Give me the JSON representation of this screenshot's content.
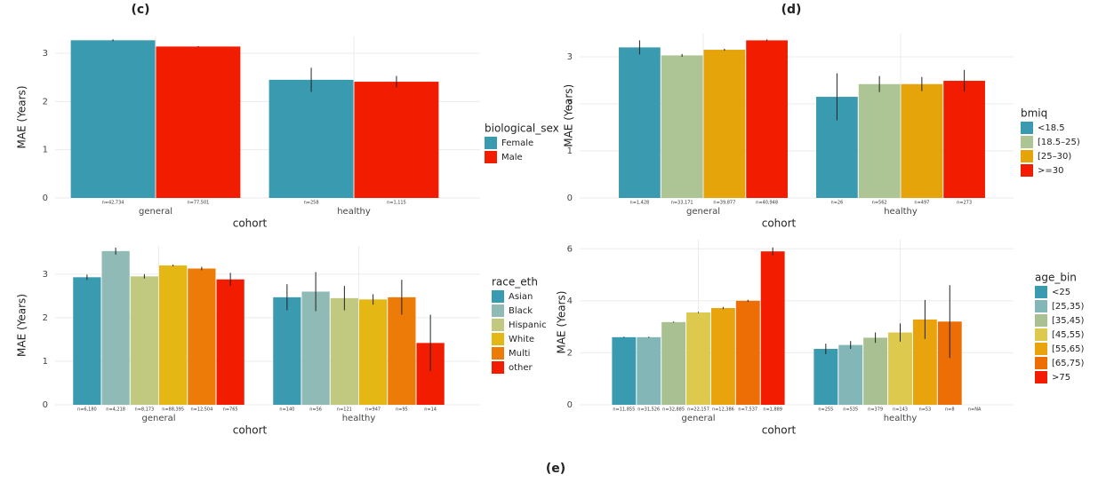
{
  "panel_labels": [
    "(c)",
    "(d)",
    "(e)"
  ],
  "chart_data": [
    {
      "type": "bar",
      "categories": [
        "general",
        "healthy"
      ],
      "xlabel": "cohort",
      "ylabel": "MAE (Years)",
      "legend_title": "biological_sex",
      "ylim": [
        0,
        3.35
      ],
      "yticks": [
        0,
        1,
        2,
        3
      ],
      "grid": true,
      "series": [
        {
          "name": "Female",
          "color": "#3a9ab0",
          "values": [
            3.27,
            2.45
          ],
          "errors": [
            0.02,
            0.25
          ],
          "n_labels": [
            "n=42,734",
            "n=258"
          ]
        },
        {
          "name": "Male",
          "color": "#f21d00",
          "values": [
            3.14,
            2.41
          ],
          "errors": [
            0.01,
            0.12
          ],
          "n_labels": [
            "n=77,501",
            "n=1,115"
          ]
        }
      ]
    },
    {
      "type": "bar",
      "categories": [
        "general",
        "healthy"
      ],
      "xlabel": "cohort",
      "ylabel": "MAE (Years)",
      "legend_title": "bmiq",
      "ylim": [
        0,
        3.5
      ],
      "yticks": [
        0,
        1,
        2,
        3
      ],
      "grid": true,
      "series": [
        {
          "name": "<18.5",
          "color": "#3a9ab0",
          "values": [
            3.2,
            2.15
          ],
          "errors": [
            0.15,
            0.5
          ],
          "n_labels": [
            "n=1,428",
            "n=26"
          ]
        },
        {
          "name": "[18.5–25)",
          "color": "#adc495",
          "values": [
            3.03,
            2.42
          ],
          "errors": [
            0.03,
            0.17
          ],
          "n_labels": [
            "n=33,171",
            "n=562"
          ]
        },
        {
          "name": "[25–30)",
          "color": "#e5a50a",
          "values": [
            3.15,
            2.42
          ],
          "errors": [
            0.02,
            0.15
          ],
          "n_labels": [
            "n=39,877",
            "n=497"
          ]
        },
        {
          "name": ">=30",
          "color": "#f21d00",
          "values": [
            3.35,
            2.49
          ],
          "errors": [
            0.02,
            0.23
          ],
          "n_labels": [
            "n=40,948",
            "n=273"
          ]
        }
      ]
    },
    {
      "type": "bar",
      "categories": [
        "general",
        "healthy"
      ],
      "xlabel": "cohort",
      "ylabel": "MAE (Years)",
      "legend_title": "race_eth",
      "ylim": [
        0,
        3.65
      ],
      "yticks": [
        0,
        1,
        2,
        3
      ],
      "grid": true,
      "series": [
        {
          "name": "Asian",
          "color": "#3a9ab0",
          "values": [
            2.93,
            2.47
          ],
          "errors": [
            0.06,
            0.3
          ],
          "n_labels": [
            "n=6,180",
            "n=140"
          ]
        },
        {
          "name": "Black",
          "color": "#8fbab6",
          "values": [
            3.53,
            2.6
          ],
          "errors": [
            0.08,
            0.45
          ],
          "n_labels": [
            "n=4,218",
            "n=56"
          ]
        },
        {
          "name": "Hispanic",
          "color": "#c0c97f",
          "values": [
            2.95,
            2.45
          ],
          "errors": [
            0.05,
            0.28
          ],
          "n_labels": [
            "n=8,173",
            "n=121"
          ]
        },
        {
          "name": "White",
          "color": "#e4b714",
          "values": [
            3.2,
            2.42
          ],
          "errors": [
            0.02,
            0.12
          ],
          "n_labels": [
            "n=88,395",
            "n=947"
          ]
        },
        {
          "name": "Multi",
          "color": "#ec7b07",
          "values": [
            3.13,
            2.47
          ],
          "errors": [
            0.04,
            0.4
          ],
          "n_labels": [
            "n=12,504",
            "n=95"
          ]
        },
        {
          "name": "other",
          "color": "#f21d00",
          "values": [
            2.88,
            1.42
          ],
          "errors": [
            0.15,
            0.65
          ],
          "n_labels": [
            "n=765",
            "n=14"
          ]
        }
      ]
    },
    {
      "type": "bar",
      "categories": [
        "general",
        "healthy"
      ],
      "xlabel": "cohort",
      "ylabel": "MAE (Years)",
      "legend_title": "age_bin",
      "ylim": [
        0,
        6.35
      ],
      "yticks": [
        0,
        2,
        4,
        6
      ],
      "grid": true,
      "series": [
        {
          "name": "<25",
          "color": "#3a9ab0",
          "values": [
            2.6,
            2.15
          ],
          "errors": [
            0.02,
            0.2
          ],
          "n_labels": [
            "n=11,855",
            "n=255"
          ]
        },
        {
          "name": "[25,35)",
          "color": "#83b7b7",
          "values": [
            2.6,
            2.3
          ],
          "errors": [
            0.02,
            0.15
          ],
          "n_labels": [
            "n=31,526",
            "n=535"
          ]
        },
        {
          "name": "[35,45)",
          "color": "#a9c192",
          "values": [
            3.18,
            2.58
          ],
          "errors": [
            0.02,
            0.2
          ],
          "n_labels": [
            "n=32,885",
            "n=379"
          ]
        },
        {
          "name": "[45,55)",
          "color": "#ddc94e",
          "values": [
            3.55,
            2.78
          ],
          "errors": [
            0.02,
            0.35
          ],
          "n_labels": [
            "n=22,157",
            "n=143"
          ]
        },
        {
          "name": "[55,65)",
          "color": "#e9a30c",
          "values": [
            3.72,
            3.28
          ],
          "errors": [
            0.04,
            0.75
          ],
          "n_labels": [
            "n=12,386",
            "n=53"
          ]
        },
        {
          "name": "[65,75)",
          "color": "#ec6e05",
          "values": [
            4.0,
            3.2
          ],
          "errors": [
            0.04,
            1.4
          ],
          "n_labels": [
            "n=7,537",
            "n=8"
          ]
        },
        {
          "name": ">75",
          "color": "#f21d00",
          "values": [
            5.9,
            null
          ],
          "errors": [
            0.15,
            null
          ],
          "n_labels": [
            "n=1,889",
            "n=NA"
          ]
        }
      ]
    }
  ]
}
